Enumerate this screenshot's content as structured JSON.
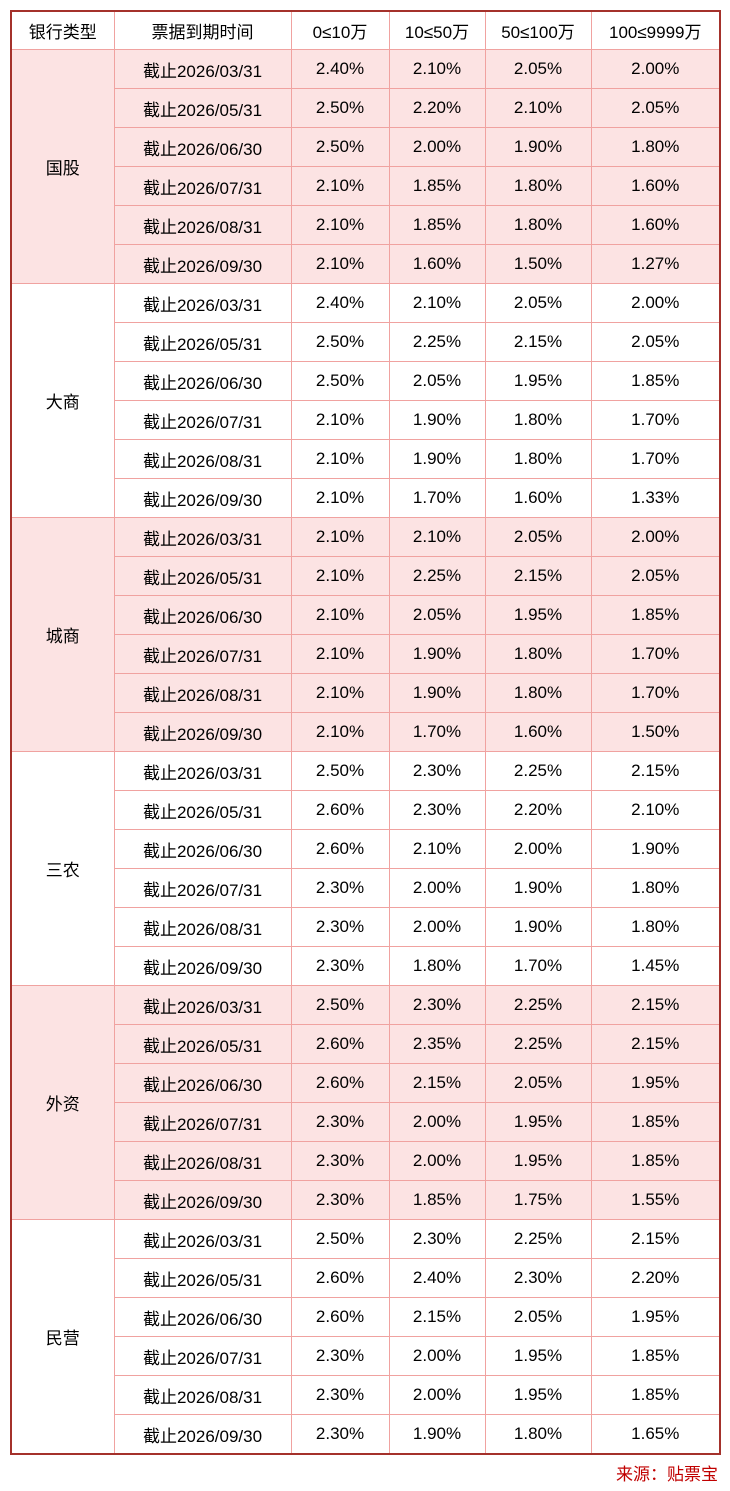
{
  "chart_data": {
    "type": "table",
    "columns": [
      "银行类型",
      "票据到期时间",
      "0≤10万",
      "10≤50万",
      "50≤100万",
      "100≤9999万"
    ],
    "groups": [
      {
        "bank_type": "国股",
        "shaded": true,
        "rows": [
          {
            "date": "截止2026/03/31",
            "rates": [
              "2.40%",
              "2.10%",
              "2.05%",
              "2.00%"
            ]
          },
          {
            "date": "截止2026/05/31",
            "rates": [
              "2.50%",
              "2.20%",
              "2.10%",
              "2.05%"
            ]
          },
          {
            "date": "截止2026/06/30",
            "rates": [
              "2.50%",
              "2.00%",
              "1.90%",
              "1.80%"
            ]
          },
          {
            "date": "截止2026/07/31",
            "rates": [
              "2.10%",
              "1.85%",
              "1.80%",
              "1.60%"
            ]
          },
          {
            "date": "截止2026/08/31",
            "rates": [
              "2.10%",
              "1.85%",
              "1.80%",
              "1.60%"
            ]
          },
          {
            "date": "截止2026/09/30",
            "rates": [
              "2.10%",
              "1.60%",
              "1.50%",
              "1.27%"
            ]
          }
        ]
      },
      {
        "bank_type": "大商",
        "shaded": false,
        "rows": [
          {
            "date": "截止2026/03/31",
            "rates": [
              "2.40%",
              "2.10%",
              "2.05%",
              "2.00%"
            ]
          },
          {
            "date": "截止2026/05/31",
            "rates": [
              "2.50%",
              "2.25%",
              "2.15%",
              "2.05%"
            ]
          },
          {
            "date": "截止2026/06/30",
            "rates": [
              "2.50%",
              "2.05%",
              "1.95%",
              "1.85%"
            ]
          },
          {
            "date": "截止2026/07/31",
            "rates": [
              "2.10%",
              "1.90%",
              "1.80%",
              "1.70%"
            ]
          },
          {
            "date": "截止2026/08/31",
            "rates": [
              "2.10%",
              "1.90%",
              "1.80%",
              "1.70%"
            ]
          },
          {
            "date": "截止2026/09/30",
            "rates": [
              "2.10%",
              "1.70%",
              "1.60%",
              "1.33%"
            ]
          }
        ]
      },
      {
        "bank_type": "城商",
        "shaded": true,
        "rows": [
          {
            "date": "截止2026/03/31",
            "rates": [
              "2.10%",
              "2.10%",
              "2.05%",
              "2.00%"
            ]
          },
          {
            "date": "截止2026/05/31",
            "rates": [
              "2.10%",
              "2.25%",
              "2.15%",
              "2.05%"
            ]
          },
          {
            "date": "截止2026/06/30",
            "rates": [
              "2.10%",
              "2.05%",
              "1.95%",
              "1.85%"
            ]
          },
          {
            "date": "截止2026/07/31",
            "rates": [
              "2.10%",
              "1.90%",
              "1.80%",
              "1.70%"
            ]
          },
          {
            "date": "截止2026/08/31",
            "rates": [
              "2.10%",
              "1.90%",
              "1.80%",
              "1.70%"
            ]
          },
          {
            "date": "截止2026/09/30",
            "rates": [
              "2.10%",
              "1.70%",
              "1.60%",
              "1.50%"
            ]
          }
        ]
      },
      {
        "bank_type": "三农",
        "shaded": false,
        "rows": [
          {
            "date": "截止2026/03/31",
            "rates": [
              "2.50%",
              "2.30%",
              "2.25%",
              "2.15%"
            ]
          },
          {
            "date": "截止2026/05/31",
            "rates": [
              "2.60%",
              "2.30%",
              "2.20%",
              "2.10%"
            ]
          },
          {
            "date": "截止2026/06/30",
            "rates": [
              "2.60%",
              "2.10%",
              "2.00%",
              "1.90%"
            ]
          },
          {
            "date": "截止2026/07/31",
            "rates": [
              "2.30%",
              "2.00%",
              "1.90%",
              "1.80%"
            ]
          },
          {
            "date": "截止2026/08/31",
            "rates": [
              "2.30%",
              "2.00%",
              "1.90%",
              "1.80%"
            ]
          },
          {
            "date": "截止2026/09/30",
            "rates": [
              "2.30%",
              "1.80%",
              "1.70%",
              "1.45%"
            ]
          }
        ]
      },
      {
        "bank_type": "外资",
        "shaded": true,
        "rows": [
          {
            "date": "截止2026/03/31",
            "rates": [
              "2.50%",
              "2.30%",
              "2.25%",
              "2.15%"
            ]
          },
          {
            "date": "截止2026/05/31",
            "rates": [
              "2.60%",
              "2.35%",
              "2.25%",
              "2.15%"
            ]
          },
          {
            "date": "截止2026/06/30",
            "rates": [
              "2.60%",
              "2.15%",
              "2.05%",
              "1.95%"
            ]
          },
          {
            "date": "截止2026/07/31",
            "rates": [
              "2.30%",
              "2.00%",
              "1.95%",
              "1.85%"
            ]
          },
          {
            "date": "截止2026/08/31",
            "rates": [
              "2.30%",
              "2.00%",
              "1.95%",
              "1.85%"
            ]
          },
          {
            "date": "截止2026/09/30",
            "rates": [
              "2.30%",
              "1.85%",
              "1.75%",
              "1.55%"
            ]
          }
        ]
      },
      {
        "bank_type": "民营",
        "shaded": false,
        "rows": [
          {
            "date": "截止2026/03/31",
            "rates": [
              "2.50%",
              "2.30%",
              "2.25%",
              "2.15%"
            ]
          },
          {
            "date": "截止2026/05/31",
            "rates": [
              "2.60%",
              "2.40%",
              "2.30%",
              "2.20%"
            ]
          },
          {
            "date": "截止2026/06/30",
            "rates": [
              "2.60%",
              "2.15%",
              "2.05%",
              "1.95%"
            ]
          },
          {
            "date": "截止2026/07/31",
            "rates": [
              "2.30%",
              "2.00%",
              "1.95%",
              "1.85%"
            ]
          },
          {
            "date": "截止2026/08/31",
            "rates": [
              "2.30%",
              "2.00%",
              "1.95%",
              "1.85%"
            ]
          },
          {
            "date": "截止2026/09/30",
            "rates": [
              "2.30%",
              "1.90%",
              "1.80%",
              "1.65%"
            ]
          }
        ]
      }
    ]
  },
  "footer": {
    "source_label": "来源：贴票宝"
  },
  "colors": {
    "outer_border": "#A4312B",
    "inner_border": "#F0A2A0",
    "shaded_row_bg": "#FCE3E3",
    "source_text": "#C00000",
    "cell_text": "#000000"
  }
}
